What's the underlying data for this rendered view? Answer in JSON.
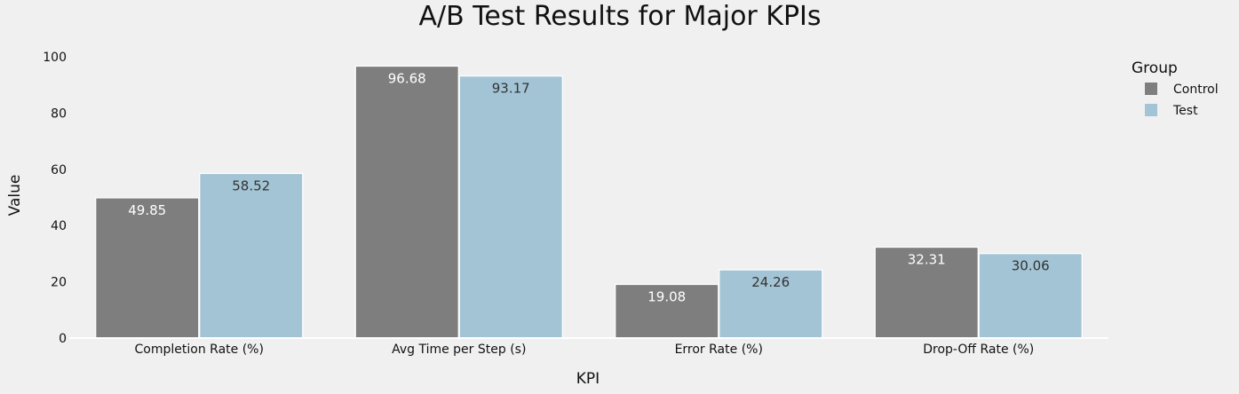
{
  "chart_data": {
    "type": "bar",
    "title": "A/B Test Results for Major KPIs",
    "xlabel": "KPI",
    "ylabel": "Value",
    "categories": [
      "Completion Rate (%)",
      "Avg Time per Step (s)",
      "Error Rate (%)",
      "Drop-Off Rate (%)"
    ],
    "series": [
      {
        "name": "Control",
        "values": [
          49.85,
          96.68,
          19.08,
          32.31
        ],
        "color": "#7d7e7d",
        "label_color": "#ffffff"
      },
      {
        "name": "Test",
        "values": [
          58.52,
          93.17,
          24.26,
          30.06
        ],
        "color": "#a3c4d5",
        "label_color": "#333333"
      }
    ],
    "ylim": [
      0,
      100
    ],
    "yticks": [
      0,
      20,
      40,
      60,
      80,
      100
    ],
    "grid": false,
    "legend": {
      "title": "Group",
      "placement": "top-right"
    },
    "background": "#f0f0f0"
  }
}
